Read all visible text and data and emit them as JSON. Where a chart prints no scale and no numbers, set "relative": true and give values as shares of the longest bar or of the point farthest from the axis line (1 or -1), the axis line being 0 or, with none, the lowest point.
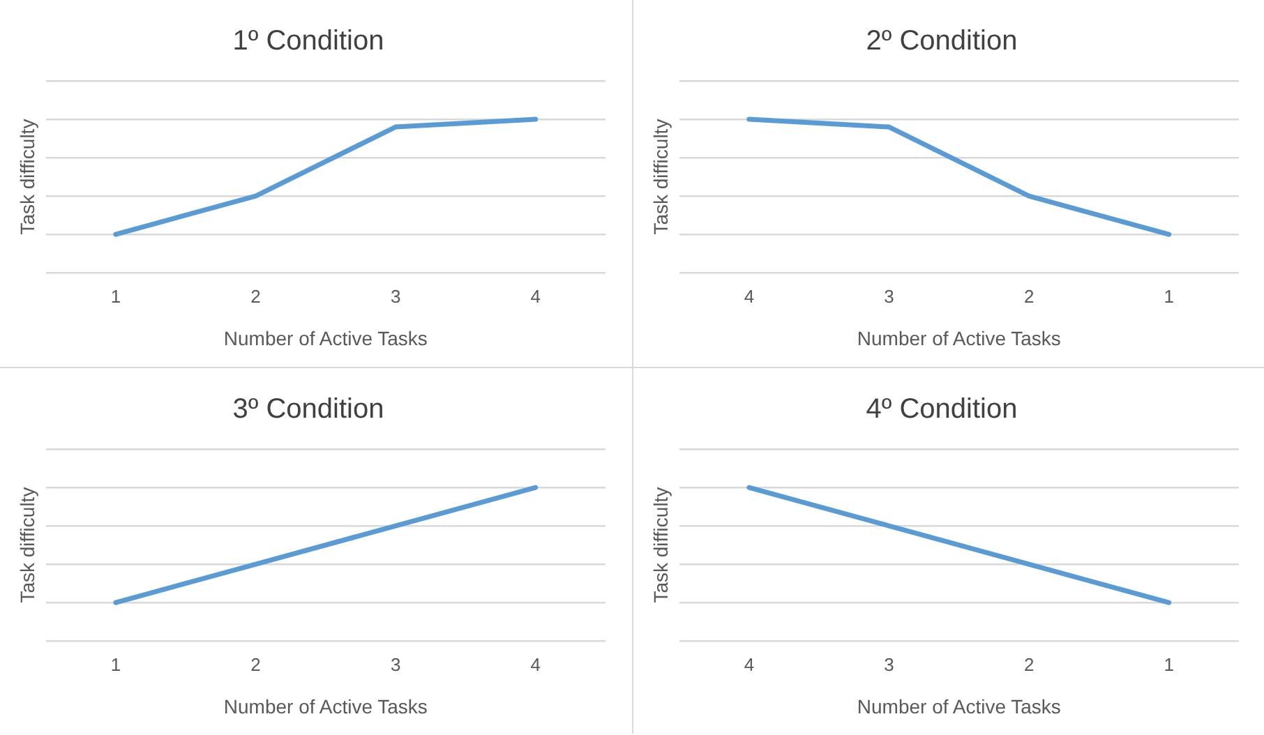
{
  "chart_data": [
    {
      "type": "line",
      "title": "1º Condition",
      "xlabel": "Number of Active Tasks",
      "ylabel": "Task difficulty",
      "categories": [
        "1",
        "2",
        "3",
        "4"
      ],
      "relative": true,
      "grid": "y",
      "legend": false,
      "marker": "none",
      "series": [
        {
          "color": "#5b9bd5",
          "values": [
            0.25,
            0.5,
            0.95,
            1
          ]
        }
      ]
    },
    {
      "type": "line",
      "title": "2º Condition",
      "xlabel": "Number of Active Tasks",
      "ylabel": "Task difficulty",
      "categories": [
        "4",
        "3",
        "2",
        "1"
      ],
      "relative": true,
      "grid": "y",
      "legend": false,
      "marker": "none",
      "series": [
        {
          "color": "#5b9bd5",
          "values": [
            1,
            0.95,
            0.5,
            0.25
          ]
        }
      ]
    },
    {
      "type": "line",
      "title": "3º Condition",
      "xlabel": "Number of Active Tasks",
      "ylabel": "Task difficulty",
      "categories": [
        "1",
        "2",
        "3",
        "4"
      ],
      "relative": true,
      "grid": "y",
      "legend": false,
      "marker": "none",
      "series": [
        {
          "color": "#5b9bd5",
          "values": [
            0.25,
            0.5,
            0.75,
            1
          ]
        }
      ]
    },
    {
      "type": "line",
      "title": "4º Condition",
      "xlabel": "Number of Active Tasks",
      "ylabel": "Task difficulty",
      "categories": [
        "4",
        "3",
        "2",
        "1"
      ],
      "relative": true,
      "grid": "y",
      "legend": false,
      "marker": "none",
      "series": [
        {
          "color": "#5b9bd5",
          "values": [
            1,
            0.75,
            0.5,
            0.25
          ]
        }
      ]
    }
  ]
}
